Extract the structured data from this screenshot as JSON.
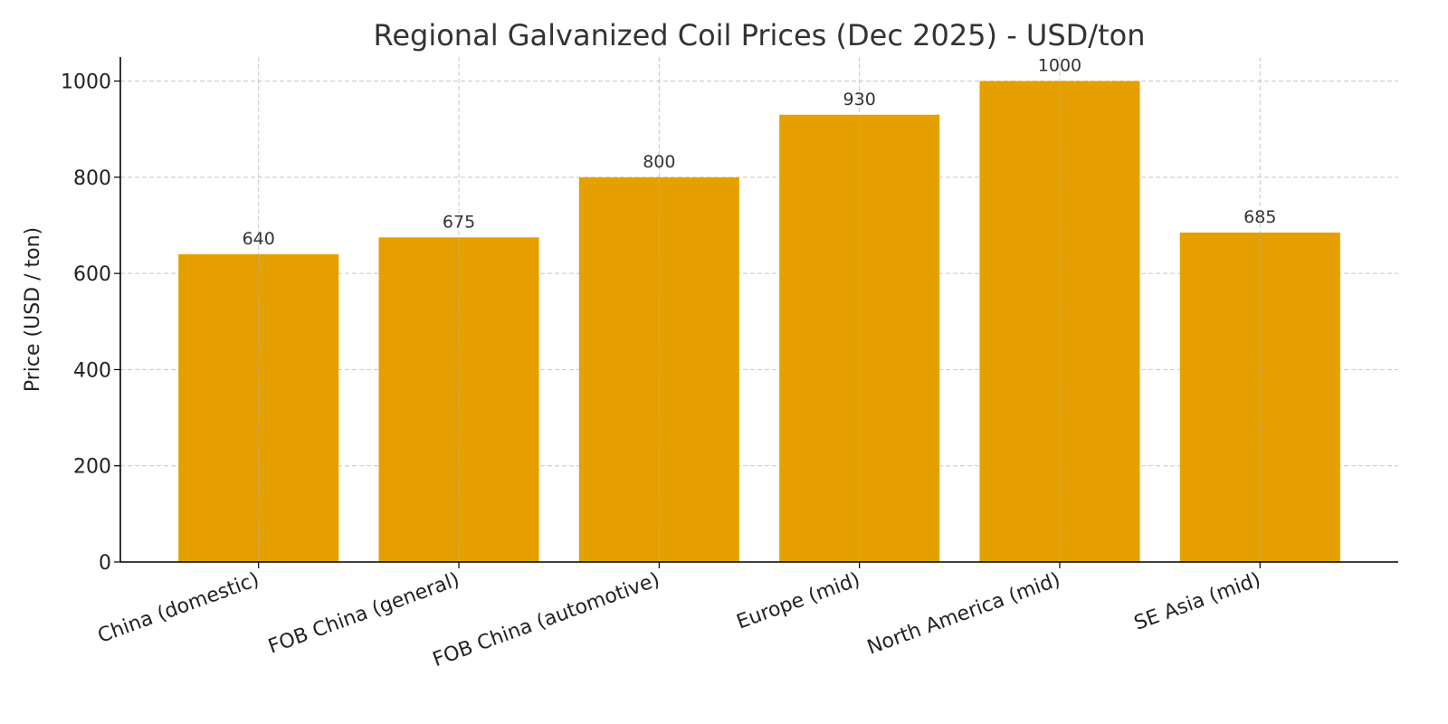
{
  "chart_data": {
    "type": "bar",
    "title": "Regional Galvanized Coil Prices (Dec 2025) - USD/ton",
    "xlabel": "",
    "ylabel": "Price (USD / ton)",
    "categories": [
      "China (domestic)",
      "FOB China (general)",
      "FOB China (automotive)",
      "Europe (mid)",
      "North America (mid)",
      "SE Asia (mid)"
    ],
    "values": [
      640,
      675,
      800,
      930,
      1000,
      685
    ],
    "data_labels": [
      "640",
      "675",
      "800",
      "930",
      "1000",
      "685"
    ],
    "ylim": [
      0,
      1050
    ],
    "yticks": [
      0,
      200,
      400,
      600,
      800,
      1000
    ],
    "ytick_labels": [
      "0",
      "200",
      "400",
      "600",
      "800",
      "1000"
    ],
    "grid": true,
    "bar_color": "#E5A000"
  }
}
